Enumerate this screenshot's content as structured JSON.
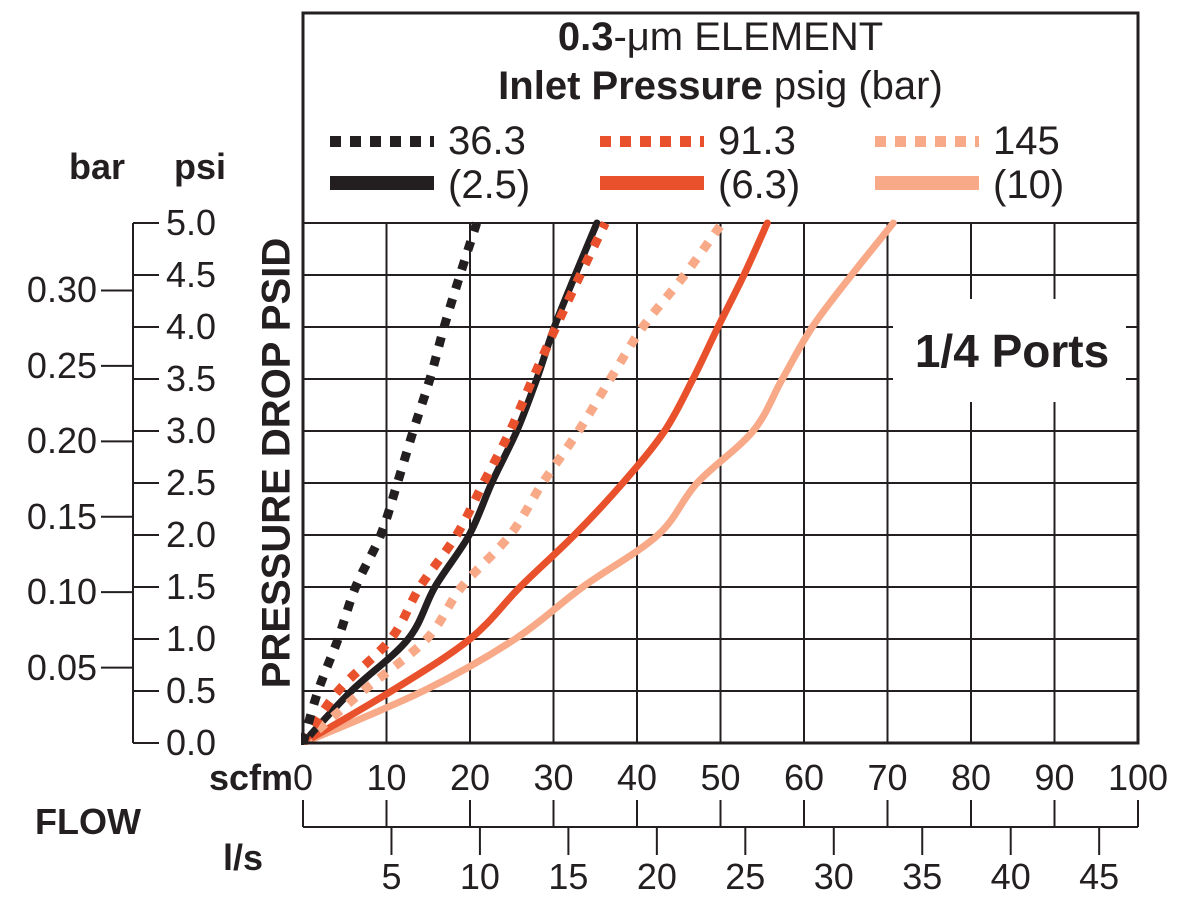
{
  "chart_data": {
    "type": "line",
    "title": {
      "bold": "0.3",
      "rest": "-μm ELEMENT"
    },
    "subtitle": {
      "bold": "Inlet Pressure",
      "rest": " psig (bar)"
    },
    "annotation": "1/4 Ports",
    "colors": {
      "black": "#231F20",
      "orange": "#E8512C",
      "salmon": "#F8A988"
    },
    "legend": {
      "note": "dotted line = inlet pressure in psig, solid line = inlet pressure in bar",
      "entries": [
        {
          "psig_label": "36.3",
          "bar_label": "(2.5)",
          "color": "#231F20"
        },
        {
          "psig_label": "91.3",
          "bar_label": "(6.3)",
          "color": "#E8512C"
        },
        {
          "psig_label": "145",
          "bar_label": "(10)",
          "color": "#F8A988"
        }
      ]
    },
    "y_axis": {
      "title": "PRESSURE DROP PSID",
      "psi_header": "psi",
      "bar_header": "bar",
      "psi_ticks": [
        "0.0",
        "0.5",
        "1.0",
        "1.5",
        "2.0",
        "2.5",
        "3.0",
        "3.5",
        "4.0",
        "4.5",
        "5.0"
      ],
      "bar_ticks": [
        "0.05",
        "0.10",
        "0.15",
        "0.20",
        "0.25",
        "0.30"
      ],
      "psi_range": [
        0,
        5
      ],
      "psi_per_bar": 14.5038,
      "grid": true
    },
    "x_axis": {
      "group_label": "FLOW",
      "scfm_header": "scfm",
      "ls_header": "l/s",
      "scfm_ticks": [
        "0",
        "10",
        "20",
        "30",
        "40",
        "50",
        "60",
        "70",
        "80",
        "90",
        "100"
      ],
      "ls_ticks": [
        "5",
        "10",
        "15",
        "20",
        "25",
        "30",
        "35",
        "40",
        "45"
      ],
      "scfm_range": [
        0,
        100
      ],
      "scfm_per_ls": 2.11888,
      "grid": true
    },
    "psi_levels": [
      0,
      0.5,
      1.0,
      1.5,
      2.0,
      2.5,
      3.0,
      3.5,
      4.0,
      4.5,
      5.0
    ],
    "series": [
      {
        "name": "inlet 10 bar (solid)",
        "inlet": "(10)",
        "color": "#F8A988",
        "dash": "solid",
        "scfm_at_psi": [
          0,
          14.4,
          25.4,
          33.5,
          42.5,
          47.2,
          53.9,
          57.4,
          61.0,
          65.7,
          70.7
        ]
      },
      {
        "name": "inlet 6.3 bar (solid)",
        "inlet": "(6.3)",
        "color": "#E8512C",
        "dash": "solid",
        "scfm_at_psi": [
          0,
          10.6,
          20.0,
          26.0,
          32.5,
          38.3,
          43.3,
          46.7,
          49.7,
          52.8,
          55.6
        ]
      },
      {
        "name": "inlet 2.5 bar (solid)",
        "inlet": "(2.5)",
        "color": "#231F20",
        "dash": "solid",
        "scfm_at_psi": [
          0,
          5.8,
          12.6,
          15.8,
          19.9,
          22.6,
          25.6,
          28.0,
          30.1,
          32.6,
          35.2
        ]
      },
      {
        "name": "inlet 145 psig (dotted)",
        "inlet": "145",
        "color": "#F8A988",
        "dash": "dotted",
        "scfm_at_psi": [
          0,
          7.2,
          14.8,
          19.0,
          24.8,
          28.7,
          33.0,
          36.8,
          40.7,
          45.7,
          50.2
        ]
      },
      {
        "name": "inlet 91.3 psig (dotted)",
        "inlet": "91.3",
        "color": "#E8512C",
        "dash": "dotted",
        "scfm_at_psi": [
          0,
          4.2,
          10.5,
          14.0,
          18.4,
          21.6,
          24.8,
          27.5,
          30.3,
          33.2,
          36.2
        ]
      },
      {
        "name": "inlet 36.3 psig (dotted)",
        "inlet": "36.3",
        "color": "#231F20",
        "dash": "dotted",
        "scfm_at_psi": [
          0,
          1.8,
          4.2,
          6.3,
          9.3,
          11.3,
          13.2,
          15.2,
          16.9,
          18.8,
          20.8
        ]
      }
    ]
  }
}
